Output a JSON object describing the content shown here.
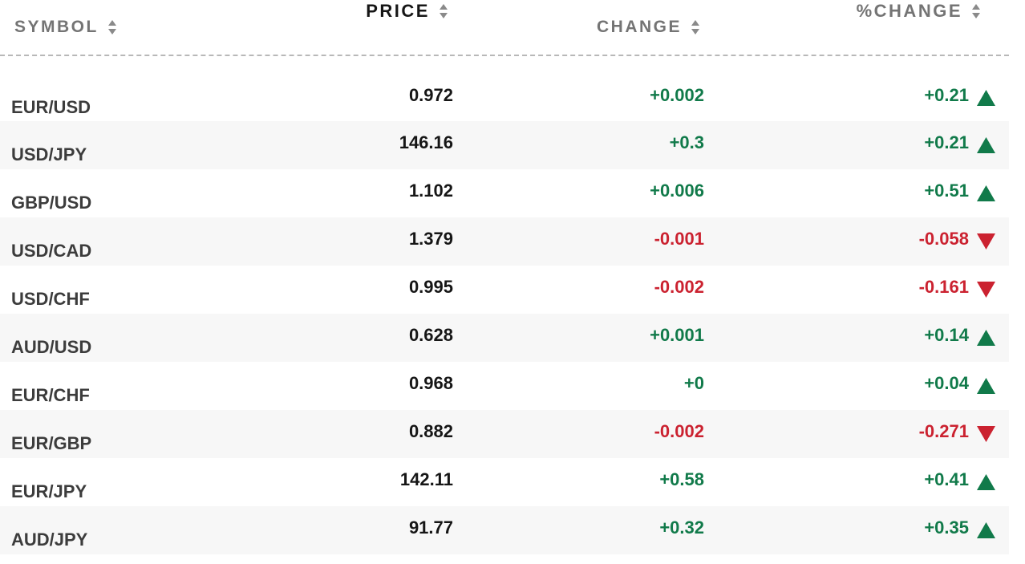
{
  "header": {
    "symbol": "SYMBOL",
    "price": "PRICE",
    "change": "CHANGE",
    "pct_change": "%CHANGE"
  },
  "colors": {
    "up": "#117a4a",
    "down": "#cb2230",
    "alt_row": "#f7f7f7"
  },
  "rows": [
    {
      "symbol": "EUR/USD",
      "price": "0.972",
      "change": "+0.002",
      "pct": "+0.21",
      "dir": "up"
    },
    {
      "symbol": "USD/JPY",
      "price": "146.16",
      "change": "+0.3",
      "pct": "+0.21",
      "dir": "up"
    },
    {
      "symbol": "GBP/USD",
      "price": "1.102",
      "change": "+0.006",
      "pct": "+0.51",
      "dir": "up"
    },
    {
      "symbol": "USD/CAD",
      "price": "1.379",
      "change": "-0.001",
      "pct": "-0.058",
      "dir": "down"
    },
    {
      "symbol": "USD/CHF",
      "price": "0.995",
      "change": "-0.002",
      "pct": "-0.161",
      "dir": "down"
    },
    {
      "symbol": "AUD/USD",
      "price": "0.628",
      "change": "+0.001",
      "pct": "+0.14",
      "dir": "up"
    },
    {
      "symbol": "EUR/CHF",
      "price": "0.968",
      "change": "+0",
      "pct": "+0.04",
      "dir": "up"
    },
    {
      "symbol": "EUR/GBP",
      "price": "0.882",
      "change": "-0.002",
      "pct": "-0.271",
      "dir": "down"
    },
    {
      "symbol": "EUR/JPY",
      "price": "142.11",
      "change": "+0.58",
      "pct": "+0.41",
      "dir": "up"
    },
    {
      "symbol": "AUD/JPY",
      "price": "91.77",
      "change": "+0.32",
      "pct": "+0.35",
      "dir": "up"
    }
  ]
}
